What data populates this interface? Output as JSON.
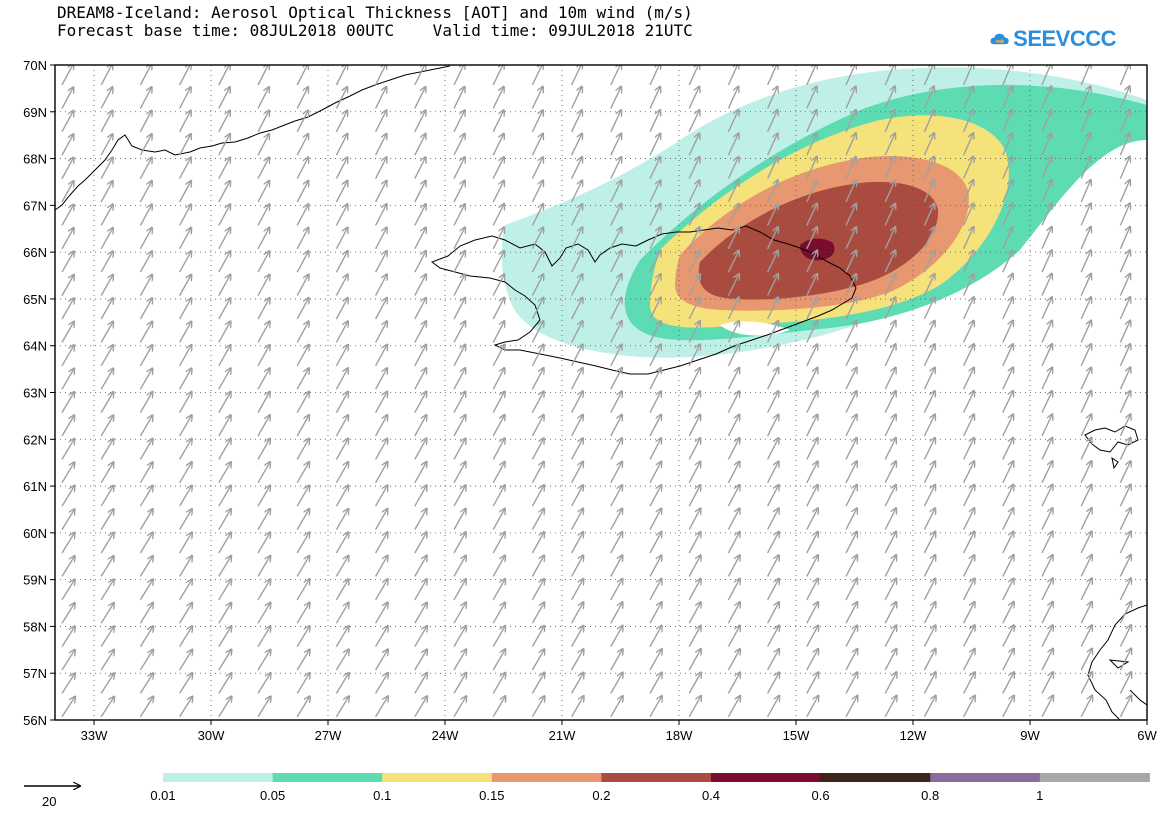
{
  "title": {
    "line1": "DREAM8-Iceland: Aerosol Optical Thickness [AOT] and 10m wind (m/s)",
    "line2": "Forecast base time: 08JUL2018 00UTC    Valid time: 09JUL2018 21UTC"
  },
  "logo": {
    "text": "SEEVCCC",
    "icon": "cloud-logo-icon",
    "color": "#2b8fe0"
  },
  "map": {
    "lon_range": [
      -34,
      -6
    ],
    "lat_range": [
      56,
      70
    ],
    "lon_ticks": [
      "33W",
      "30W",
      "27W",
      "24W",
      "21W",
      "18W",
      "15W",
      "12W",
      "9W",
      "6W"
    ],
    "lat_ticks": [
      "56N",
      "57N",
      "58N",
      "59N",
      "60N",
      "61N",
      "62N",
      "63N",
      "64N",
      "65N",
      "66N",
      "67N",
      "68N",
      "69N",
      "70N"
    ],
    "grid": "dotted",
    "wind_arrow_color": "#a0a0a0",
    "wind_direction": "south-west to north-east"
  },
  "legend": {
    "levels": [
      "0.01",
      "0.05",
      "0.1",
      "0.15",
      "0.2",
      "0.4",
      "0.6",
      "0.8",
      "1"
    ],
    "colors": [
      "#bff0e8",
      "#5ddcb4",
      "#f5e27a",
      "#e89870",
      "#a94b3e",
      "#7a0d2e",
      "#3b2418",
      "#8d6a9c",
      "#a8a8a8"
    ],
    "wind_reference": "20"
  }
}
